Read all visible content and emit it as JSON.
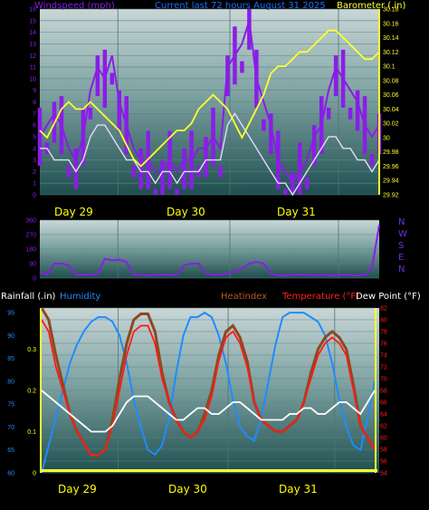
{
  "colors": {
    "wind": "#8a1de8",
    "gust": "#e8d9ff",
    "barometer": "#ffff33",
    "dir": "#8a1de8",
    "humidity": "#1e8cff",
    "heatindex": "#8b4a1e",
    "temperature": "#ff1a1a",
    "dewpoint": "#ffffff",
    "rain": "#ffff33",
    "label_rain": "#ffffff",
    "label_hum": "#1e8cff",
    "label_heat": "#b05a20",
    "label_temp": "#ff2020",
    "label_dew": "#ffffff"
  },
  "chart_data": [
    {
      "type": "line",
      "title": "Current last 72 hours August 31 2025",
      "left_axis_label": "Windspeed (mph)",
      "right_axis_label": "Barometer (.in)",
      "days": [
        "Day 29",
        "Day 30",
        "Day 31"
      ],
      "ylim_left": [
        0,
        16
      ],
      "ylim_right": [
        29.92,
        30.18
      ],
      "left_ticks": [
        "0",
        "1",
        "2",
        "3",
        "4",
        "5",
        "6",
        "7",
        "8",
        "9",
        "10",
        "11",
        "12",
        "13",
        "14",
        "15",
        "16"
      ],
      "right_ticks": [
        "29.92",
        "29.94",
        "29.96",
        "29.98",
        "30",
        "30.02",
        "30.04",
        "30.06",
        "30.08",
        "30.1",
        "30.12",
        "30.14",
        "30.16",
        "30.18"
      ],
      "series": [
        {
          "name": "wind",
          "values": [
            5,
            6,
            7,
            6,
            4,
            3,
            5,
            9,
            11,
            10,
            12,
            8,
            6,
            4,
            3,
            3,
            2,
            2,
            3,
            2,
            3,
            3,
            4,
            4,
            5,
            4,
            11,
            12,
            13,
            15,
            10,
            8,
            6,
            3,
            2,
            1,
            2,
            3,
            5,
            6,
            9,
            11,
            10,
            9,
            8,
            6,
            5,
            6
          ]
        },
        {
          "name": "gust",
          "values": [
            4,
            4,
            3,
            3,
            3,
            2,
            3,
            5,
            6,
            6,
            5,
            4,
            3,
            3,
            2,
            2,
            1,
            2,
            2,
            1,
            2,
            2,
            2,
            3,
            3,
            3,
            6,
            7,
            6,
            5,
            4,
            3,
            2,
            1,
            1,
            0,
            1,
            2,
            3,
            4,
            5,
            5,
            4,
            4,
            3,
            3,
            2,
            3
          ]
        },
        {
          "name": "barometer",
          "values": [
            30.01,
            30.0,
            30.02,
            30.04,
            30.05,
            30.04,
            30.04,
            30.05,
            30.04,
            30.03,
            30.02,
            30.01,
            29.99,
            29.97,
            29.96,
            29.97,
            29.98,
            29.99,
            30.0,
            30.01,
            30.01,
            30.02,
            30.04,
            30.05,
            30.06,
            30.05,
            30.04,
            30.02,
            30.0,
            30.02,
            30.04,
            30.06,
            30.09,
            30.1,
            30.1,
            30.11,
            30.12,
            30.12,
            30.13,
            30.14,
            30.15,
            30.15,
            30.14,
            30.13,
            30.12,
            30.11,
            30.11,
            30.12
          ]
        }
      ]
    },
    {
      "type": "line",
      "ylim": [
        0,
        360
      ],
      "ticks": [
        "0",
        "90",
        "180",
        "270",
        "360"
      ],
      "compass": [
        "N",
        "W",
        "S",
        "E",
        "N"
      ],
      "series": [
        {
          "name": "direction",
          "values": [
            40,
            20,
            90,
            90,
            80,
            20,
            20,
            20,
            25,
            120,
            110,
            115,
            100,
            20,
            20,
            15,
            20,
            20,
            20,
            20,
            80,
            90,
            90,
            30,
            20,
            20,
            30,
            40,
            60,
            90,
            100,
            90,
            30,
            15,
            15,
            20,
            20,
            20,
            15,
            20,
            15,
            15,
            20,
            20,
            15,
            20,
            60,
            330
          ]
        }
      ]
    },
    {
      "type": "line",
      "labels": {
        "rainfall": "Rainfall (.in)",
        "humidity": "Humidity",
        "heatindex": "Heatindex",
        "temperature": "Temperature (°F)",
        "dewpoint": "Dew Point (°F)"
      },
      "days": [
        "Day 29",
        "Day 30",
        "Day 31"
      ],
      "ylim_humidity": [
        60,
        96
      ],
      "ylim_temp": [
        54,
        82
      ],
      "ylim_rain": [
        0,
        0.4
      ],
      "humidity_ticks": [
        "60",
        "65",
        "70",
        "75",
        "80",
        "85",
        "90",
        "95"
      ],
      "rain_ticks": [
        "0",
        "0.1",
        "0.2",
        "0.3"
      ],
      "temp_ticks": [
        "54",
        "56",
        "58",
        "60",
        "62",
        "64",
        "66",
        "68",
        "70",
        "72",
        "74",
        "76",
        "78",
        "80",
        "82"
      ],
      "series": [
        {
          "name": "humidity",
          "values": [
            60,
            66,
            72,
            78,
            84,
            88,
            91,
            93,
            94,
            94,
            93,
            90,
            84,
            76,
            70,
            65,
            64,
            66,
            72,
            82,
            90,
            94,
            94,
            95,
            94,
            90,
            84,
            76,
            70,
            68,
            67,
            72,
            80,
            88,
            94,
            95,
            95,
            95,
            94,
            93,
            90,
            84,
            76,
            70,
            66,
            65,
            72,
            80
          ]
        },
        {
          "name": "temperature",
          "values": [
            80,
            78,
            72,
            68,
            64,
            61,
            59,
            57,
            57,
            58,
            62,
            68,
            74,
            78,
            79,
            79,
            76,
            70,
            66,
            63,
            61,
            60,
            61,
            63,
            67,
            73,
            77,
            78,
            76,
            72,
            66,
            63,
            62,
            61,
            61,
            62,
            63,
            66,
            70,
            74,
            76,
            77,
            76,
            74,
            68,
            62,
            60,
            58
          ]
        },
        {
          "name": "heatindex",
          "values": [
            82,
            80,
            74,
            69,
            64,
            61,
            59,
            57,
            57,
            58,
            63,
            70,
            76,
            80,
            81,
            81,
            78,
            71,
            66,
            63,
            61,
            60,
            61,
            64,
            68,
            74,
            78,
            79,
            77,
            73,
            66,
            63,
            62,
            61,
            61,
            62,
            63,
            66,
            71,
            75,
            77,
            78,
            77,
            75,
            69,
            62,
            60,
            58
          ]
        },
        {
          "name": "dewpoint",
          "values": [
            68,
            67,
            66,
            65,
            64,
            63,
            62,
            61,
            61,
            61,
            62,
            64,
            66,
            67,
            67,
            67,
            66,
            65,
            64,
            63,
            63,
            64,
            65,
            65,
            64,
            64,
            65,
            66,
            66,
            65,
            64,
            63,
            63,
            63,
            63,
            64,
            64,
            65,
            65,
            64,
            64,
            65,
            66,
            66,
            65,
            64,
            66,
            68
          ]
        }
      ]
    }
  ]
}
